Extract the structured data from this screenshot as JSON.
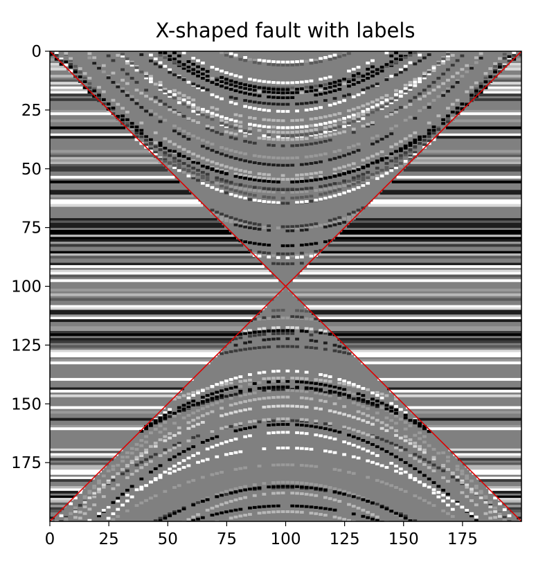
{
  "chart_data": {
    "type": "heatmap",
    "title": "X-shaped fault with labels",
    "xlabel": "",
    "ylabel": "",
    "xlim": [
      0,
      200
    ],
    "ylim": [
      200,
      0
    ],
    "xticks": [
      0,
      25,
      50,
      75,
      100,
      125,
      150,
      175
    ],
    "yticks": [
      0,
      25,
      50,
      75,
      100,
      125,
      150,
      175
    ],
    "colormap": "gray",
    "grid": false,
    "legend": "none",
    "fault_lines": [
      {
        "x": [
          0,
          200
        ],
        "y": [
          0,
          200
        ],
        "color": "#dd0000"
      },
      {
        "x": [
          0,
          200
        ],
        "y": [
          200,
          0
        ],
        "color": "#dd0000"
      }
    ]
  }
}
